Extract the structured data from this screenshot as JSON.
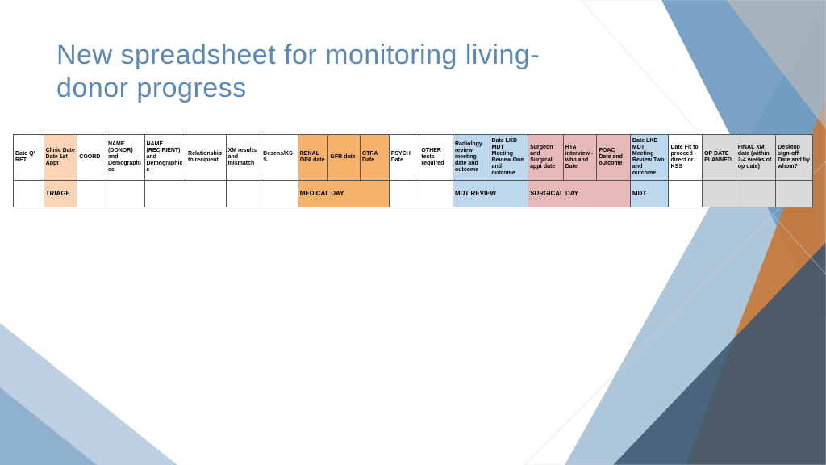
{
  "title": {
    "line1": "New spreadsheet for monitoring living-",
    "line2": "donor progress",
    "color": "#5b89b4",
    "fontsize": 34
  },
  "palette": {
    "white": "#ffffff",
    "peach": "#fbd5b5",
    "orange": "#f6b26b",
    "blue": "#bdd7ee",
    "pink": "#e6b8b7",
    "grey": "#d9d9d9",
    "border": "#555555"
  },
  "bg_shapes": {
    "blue_light": "#9fbcd4",
    "blue_mid": "#6a98bf",
    "blue_dark": "#37536d",
    "orange": "#c77a3a",
    "grey": "#b9b9b9"
  },
  "columns": [
    {
      "label": "Date Q' RET",
      "fill": "white"
    },
    {
      "label": "Clinic Date Date 1st Appt",
      "fill": "peach"
    },
    {
      "label": "COORD",
      "fill": "white"
    },
    {
      "label": "NAME (DONOR) and Demographics",
      "fill": "white"
    },
    {
      "label": "NAME (RECIPIENT) and Demographics",
      "fill": "white"
    },
    {
      "label": "Relationship to recipient",
      "fill": "white"
    },
    {
      "label": "XM results and mismatch",
      "fill": "white"
    },
    {
      "label": "Desens/KSS",
      "fill": "white"
    },
    {
      "label": "RENAL OPA date",
      "fill": "orange"
    },
    {
      "label": "GFR date",
      "fill": "orange"
    },
    {
      "label": "CTRA Date",
      "fill": "orange"
    },
    {
      "label": "PSYCH Date",
      "fill": "white"
    },
    {
      "label": "OTHER tests required",
      "fill": "white"
    },
    {
      "label": "Radiology review meeting date and outcome",
      "fill": "blue"
    },
    {
      "label": "Date LKD MDT Meeting Review One and outcome",
      "fill": "blue"
    },
    {
      "label": "Surgeon and Surgical appt date",
      "fill": "pink"
    },
    {
      "label": "HTA interview - who and Date",
      "fill": "pink"
    },
    {
      "label": "POAC Date and outcome",
      "fill": "pink"
    },
    {
      "label": "Date LKD MDT Meeting Review Two and outcome",
      "fill": "blue"
    },
    {
      "label": "Date Fit to proceed - direct or KSS",
      "fill": "white"
    },
    {
      "label": "OP DATE PLANNED",
      "fill": "grey"
    },
    {
      "label": "FINAL XM date (within 2-4 weeks of op date)",
      "fill": "grey"
    },
    {
      "label": "Desktop sign-off Date and by whom?",
      "fill": "grey"
    }
  ],
  "group_labels": [
    {
      "text": "",
      "fill": "white"
    },
    {
      "text": "TRIAGE",
      "fill": "peach"
    },
    {
      "text": "",
      "fill": "white"
    },
    {
      "text": "",
      "fill": "white"
    },
    {
      "text": "",
      "fill": "white"
    },
    {
      "text": "",
      "fill": "white"
    },
    {
      "text": "",
      "fill": "white"
    },
    {
      "text": "",
      "fill": "white"
    },
    {
      "text": "MEDICAL DAY",
      "fill": "orange",
      "span": 3
    },
    {
      "text": "",
      "fill": "white"
    },
    {
      "text": "",
      "fill": "white"
    },
    {
      "text": "MDT REVIEW",
      "fill": "blue",
      "span": 2
    },
    {
      "text": "SURGICAL DAY",
      "fill": "pink",
      "span": 3
    },
    {
      "text": "MDT",
      "fill": "blue"
    },
    {
      "text": "",
      "fill": "white"
    },
    {
      "text": "",
      "fill": "grey"
    },
    {
      "text": "",
      "fill": "grey"
    },
    {
      "text": "",
      "fill": "grey"
    }
  ],
  "column_widths_pct": [
    3.8,
    4.2,
    3.6,
    4.8,
    5.2,
    5.0,
    4.4,
    4.6,
    3.8,
    4.0,
    3.6,
    3.8,
    4.2,
    4.6,
    4.8,
    4.4,
    4.2,
    4.2,
    4.8,
    4.2,
    4.2,
    5.0,
    4.6
  ]
}
